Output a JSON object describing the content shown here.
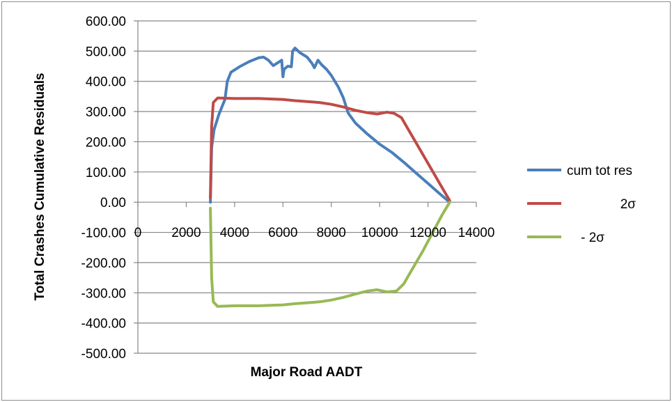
{
  "chart_data": {
    "type": "line",
    "title": "",
    "xlabel": "Major Road AADT",
    "ylabel": "Total Crashes Cumulative Residuals",
    "xlim": [
      0,
      14000
    ],
    "ylim": [
      -500,
      600
    ],
    "x_ticks": [
      "0",
      "2000",
      "4000",
      "6000",
      "8000",
      "10000",
      "12000",
      "14000"
    ],
    "y_ticks": [
      "600.00",
      "500.00",
      "400.00",
      "300.00",
      "200.00",
      "100.00",
      "0.00",
      "-100.00",
      "-200.00",
      "-300.00",
      "-400.00",
      "-500.00"
    ],
    "grid": "horizontal",
    "legend_position": "right",
    "series": [
      {
        "name": "cum tot res",
        "color": "#4a7ebb",
        "points": [
          [
            3000,
            0
          ],
          [
            3050,
            180
          ],
          [
            3150,
            240
          ],
          [
            3350,
            290
          ],
          [
            3600,
            340
          ],
          [
            3700,
            400
          ],
          [
            3850,
            430
          ],
          [
            4200,
            448
          ],
          [
            4600,
            465
          ],
          [
            5000,
            478
          ],
          [
            5200,
            480
          ],
          [
            5400,
            470
          ],
          [
            5600,
            452
          ],
          [
            5800,
            462
          ],
          [
            5950,
            470
          ],
          [
            6000,
            415
          ],
          [
            6050,
            440
          ],
          [
            6200,
            450
          ],
          [
            6350,
            448
          ],
          [
            6400,
            500
          ],
          [
            6500,
            510
          ],
          [
            6700,
            495
          ],
          [
            7000,
            480
          ],
          [
            7200,
            460
          ],
          [
            7300,
            445
          ],
          [
            7450,
            470
          ],
          [
            7600,
            455
          ],
          [
            7800,
            440
          ],
          [
            8000,
            420
          ],
          [
            8300,
            380
          ],
          [
            8500,
            345
          ],
          [
            8700,
            295
          ],
          [
            9000,
            262
          ],
          [
            9500,
            225
          ],
          [
            10000,
            192
          ],
          [
            10500,
            165
          ],
          [
            11000,
            132
          ],
          [
            11500,
            97
          ],
          [
            12000,
            62
          ],
          [
            12500,
            27
          ],
          [
            12900,
            0
          ]
        ]
      },
      {
        "name": "2σ",
        "color": "#be4b48",
        "points": [
          [
            3000,
            15
          ],
          [
            3050,
            250
          ],
          [
            3120,
            330
          ],
          [
            3300,
            345
          ],
          [
            4000,
            343
          ],
          [
            5000,
            343
          ],
          [
            6000,
            340
          ],
          [
            6500,
            336
          ],
          [
            7000,
            333
          ],
          [
            7500,
            330
          ],
          [
            8000,
            324
          ],
          [
            8500,
            315
          ],
          [
            9000,
            304
          ],
          [
            9500,
            296
          ],
          [
            9900,
            292
          ],
          [
            10300,
            298
          ],
          [
            10600,
            294
          ],
          [
            10900,
            280
          ],
          [
            11300,
            225
          ],
          [
            11700,
            170
          ],
          [
            12100,
            115
          ],
          [
            12500,
            60
          ],
          [
            12900,
            5
          ]
        ]
      },
      {
        "name": "-  2σ",
        "color": "#98b954",
        "points": [
          [
            3000,
            -20
          ],
          [
            3050,
            -250
          ],
          [
            3120,
            -330
          ],
          [
            3300,
            -345
          ],
          [
            4000,
            -343
          ],
          [
            5000,
            -343
          ],
          [
            6000,
            -340
          ],
          [
            6500,
            -336
          ],
          [
            7000,
            -333
          ],
          [
            7500,
            -330
          ],
          [
            8000,
            -324
          ],
          [
            8500,
            -315
          ],
          [
            9000,
            -304
          ],
          [
            9500,
            -294
          ],
          [
            9900,
            -290
          ],
          [
            10300,
            -297
          ],
          [
            10700,
            -294
          ],
          [
            11000,
            -270
          ],
          [
            11400,
            -215
          ],
          [
            11800,
            -160
          ],
          [
            12200,
            -100
          ],
          [
            12600,
            -40
          ],
          [
            12900,
            0
          ]
        ]
      }
    ]
  }
}
